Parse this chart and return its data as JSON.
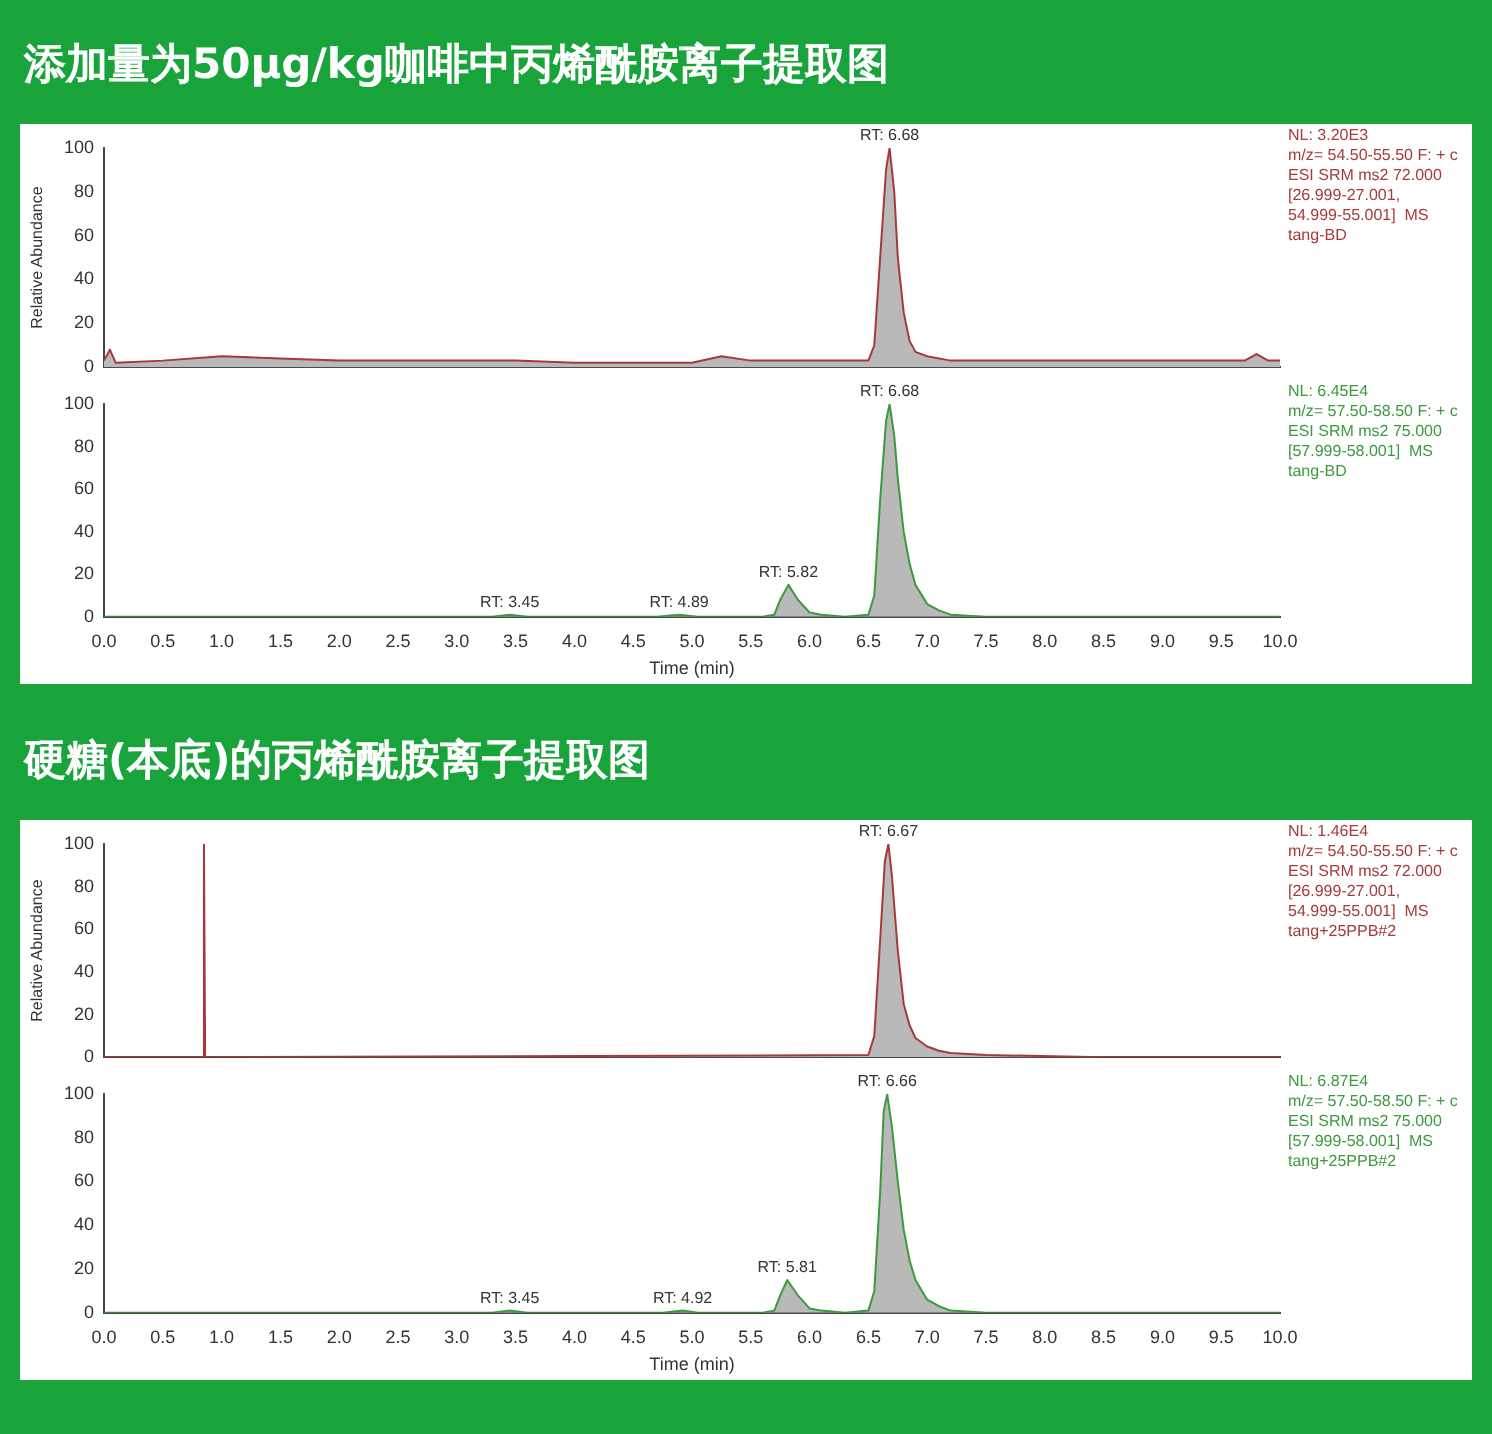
{
  "chart_data": [
    {
      "type": "area",
      "title": "添加量为50μg/kg咖啡中丙烯酰胺离子提取图",
      "ylabel": "Relative Abundance",
      "marker": "none",
      "tick_labels": "y",
      "x": [
        0,
        0.05,
        0.1,
        0.5,
        1,
        1.5,
        2,
        2.5,
        3,
        3.5,
        4,
        4.5,
        5,
        5.25,
        5.5,
        6,
        6.3,
        6.5,
        6.55,
        6.6,
        6.65,
        6.68,
        6.72,
        6.75,
        6.8,
        6.85,
        6.9,
        7,
        7.2,
        7.5,
        8,
        8.5,
        9,
        9.5,
        9.7,
        9.8,
        9.9,
        10
      ],
      "series": [
        {
          "color": "#a8393a",
          "values": [
            3,
            8,
            2,
            3,
            5,
            4,
            3,
            3,
            3,
            3,
            2,
            2,
            2,
            5,
            3,
            3,
            3,
            3,
            10,
            50,
            90,
            100,
            80,
            50,
            25,
            12,
            7,
            5,
            3,
            3,
            3,
            3,
            3,
            3,
            3,
            6,
            3,
            3
          ]
        }
      ],
      "xlim": [
        0,
        10
      ],
      "xticks": [
        0,
        0.5,
        1,
        1.5,
        2,
        2.5,
        3,
        3.5,
        4,
        4.5,
        5,
        5.5,
        6,
        6.5,
        7,
        7.5,
        8,
        8.5,
        9,
        9.5,
        10
      ],
      "ylim": [
        0,
        100
      ],
      "yticks": [
        0,
        20,
        40,
        60,
        80,
        100
      ],
      "annotations": [
        {
          "text": "RT: 6.68",
          "x": 6.68,
          "y": 100
        },
        "NL: 3.20E3",
        "m/z= 54.50-55.50 F: + c",
        "ESI SRM ms2 72.000",
        "[26.999-27.001,",
        "54.999-55.001]  MS",
        "tang-BD"
      ]
    },
    {
      "type": "area",
      "xlabel": "Time (min)",
      "marker": "none",
      "x": [
        0,
        3.3,
        3.45,
        3.6,
        4.7,
        4.89,
        5.05,
        5.6,
        5.7,
        5.75,
        5.82,
        5.9,
        6,
        6.1,
        6.3,
        6.5,
        6.55,
        6.6,
        6.65,
        6.68,
        6.72,
        6.75,
        6.8,
        6.85,
        6.9,
        7,
        7.1,
        7.2,
        7.5,
        10
      ],
      "series": [
        {
          "color": "#3b9a3b",
          "values": [
            0,
            0,
            1,
            0,
            0,
            1,
            0,
            0,
            1,
            8,
            15,
            8,
            2,
            1,
            0,
            1,
            10,
            55,
            92,
            100,
            85,
            65,
            40,
            25,
            15,
            6,
            3,
            1,
            0,
            0
          ]
        }
      ],
      "xlim": [
        0,
        10
      ],
      "xticks": [
        {
          "value": 0,
          "label": "0.0"
        },
        0.5,
        {
          "value": 1,
          "label": "1.0"
        },
        1.5,
        {
          "value": 2,
          "label": "2.0"
        },
        2.5,
        {
          "value": 3,
          "label": "3.0"
        },
        3.5,
        {
          "value": 4,
          "label": "4.0"
        },
        4.5,
        {
          "value": 5,
          "label": "5.0"
        },
        5.5,
        {
          "value": 6,
          "label": "6.0"
        },
        6.5,
        {
          "value": 7,
          "label": "7.0"
        },
        7.5,
        {
          "value": 8,
          "label": "8.0"
        },
        8.5,
        {
          "value": 9,
          "label": "9.0"
        },
        9.5,
        {
          "value": 10,
          "label": "10.0"
        }
      ],
      "ylim": [
        0,
        100
      ],
      "yticks": [
        0,
        20,
        40,
        60,
        80,
        100
      ],
      "annotations": [
        {
          "text": "RT: 3.45",
          "x": 3.45,
          "y": 1
        },
        {
          "text": "RT: 4.89",
          "x": 4.89,
          "y": 1
        },
        {
          "text": "RT: 5.82",
          "x": 5.82,
          "y": 15
        },
        {
          "text": "RT: 6.68",
          "x": 6.68,
          "y": 100
        },
        "NL: 6.45E4",
        "m/z= 57.50-58.50 F: + c",
        "ESI SRM ms2 75.000",
        "[57.999-58.001]  MS",
        "tang-BD"
      ]
    },
    {
      "type": "area",
      "title": "硬糖(本底)的丙烯酰胺离子提取图",
      "ylabel": "Relative Abundance",
      "marker": "none",
      "tick_labels": "y",
      "x": [
        0,
        0.84,
        0.85,
        0.86,
        6.5,
        6.55,
        6.6,
        6.64,
        6.67,
        6.7,
        6.75,
        6.8,
        6.85,
        6.9,
        7,
        7.1,
        7.2,
        7.5,
        8.5,
        10
      ],
      "series": [
        {
          "color": "#a8393a",
          "values": [
            0,
            0,
            100,
            0,
            1,
            10,
            55,
            92,
            100,
            85,
            50,
            25,
            15,
            9,
            5,
            3,
            2,
            1,
            0,
            0
          ]
        }
      ],
      "xlim": [
        0,
        10
      ],
      "xticks": [
        0,
        0.5,
        1,
        1.5,
        2,
        2.5,
        3,
        3.5,
        4,
        4.5,
        5,
        5.5,
        6,
        6.5,
        7,
        7.5,
        8,
        8.5,
        9,
        9.5,
        10
      ],
      "ylim": [
        0,
        100
      ],
      "yticks": [
        0,
        20,
        40,
        60,
        80,
        100
      ],
      "annotations": [
        {
          "text": "RT: 6.67",
          "x": 6.67,
          "y": 100
        },
        "NL: 1.46E4",
        "m/z= 54.50-55.50 F: + c",
        "ESI SRM ms2 72.000",
        "[26.999-27.001,",
        "54.999-55.001]  MS",
        "tang+25PPB#2"
      ]
    },
    {
      "type": "area",
      "xlabel": "Time (min)",
      "marker": "none",
      "x": [
        0,
        3.3,
        3.45,
        3.6,
        4.75,
        4.92,
        5.05,
        5.6,
        5.7,
        5.75,
        5.81,
        5.9,
        6,
        6.1,
        6.3,
        6.5,
        6.55,
        6.6,
        6.63,
        6.66,
        6.7,
        6.75,
        6.8,
        6.85,
        6.9,
        7,
        7.1,
        7.2,
        7.5,
        10
      ],
      "series": [
        {
          "color": "#3b9a3b",
          "values": [
            0,
            0,
            1,
            0,
            0,
            1,
            0,
            0,
            1,
            8,
            15,
            8,
            2,
            1,
            0,
            1,
            10,
            55,
            92,
            100,
            85,
            60,
            38,
            24,
            15,
            6,
            3,
            1,
            0,
            0
          ]
        }
      ],
      "xlim": [
        0,
        10
      ],
      "xticks": [
        {
          "value": 0,
          "label": "0.0"
        },
        0.5,
        {
          "value": 1,
          "label": "1.0"
        },
        1.5,
        {
          "value": 2,
          "label": "2.0"
        },
        2.5,
        {
          "value": 3,
          "label": "3.0"
        },
        3.5,
        {
          "value": 4,
          "label": "4.0"
        },
        4.5,
        {
          "value": 5,
          "label": "5.0"
        },
        5.5,
        {
          "value": 6,
          "label": "6.0"
        },
        6.5,
        {
          "value": 7,
          "label": "7.0"
        },
        7.5,
        {
          "value": 8,
          "label": "8.0"
        },
        8.5,
        {
          "value": 9,
          "label": "9.0"
        },
        9.5,
        {
          "value": 10,
          "label": "10.0"
        }
      ],
      "ylim": [
        0,
        100
      ],
      "yticks": [
        0,
        20,
        40,
        60,
        80,
        100
      ],
      "annotations": [
        {
          "text": "RT: 3.45",
          "x": 3.45,
          "y": 1
        },
        {
          "text": "RT: 4.92",
          "x": 4.92,
          "y": 1
        },
        {
          "text": "RT: 5.81",
          "x": 5.81,
          "y": 15
        },
        {
          "text": "RT: 6.66",
          "x": 6.66,
          "y": 100
        },
        "NL: 6.87E4",
        "m/z= 57.50-58.50 F: + c",
        "ESI SRM ms2 75.000",
        "[57.999-58.001]  MS",
        "tang+25PPB#2"
      ]
    }
  ]
}
